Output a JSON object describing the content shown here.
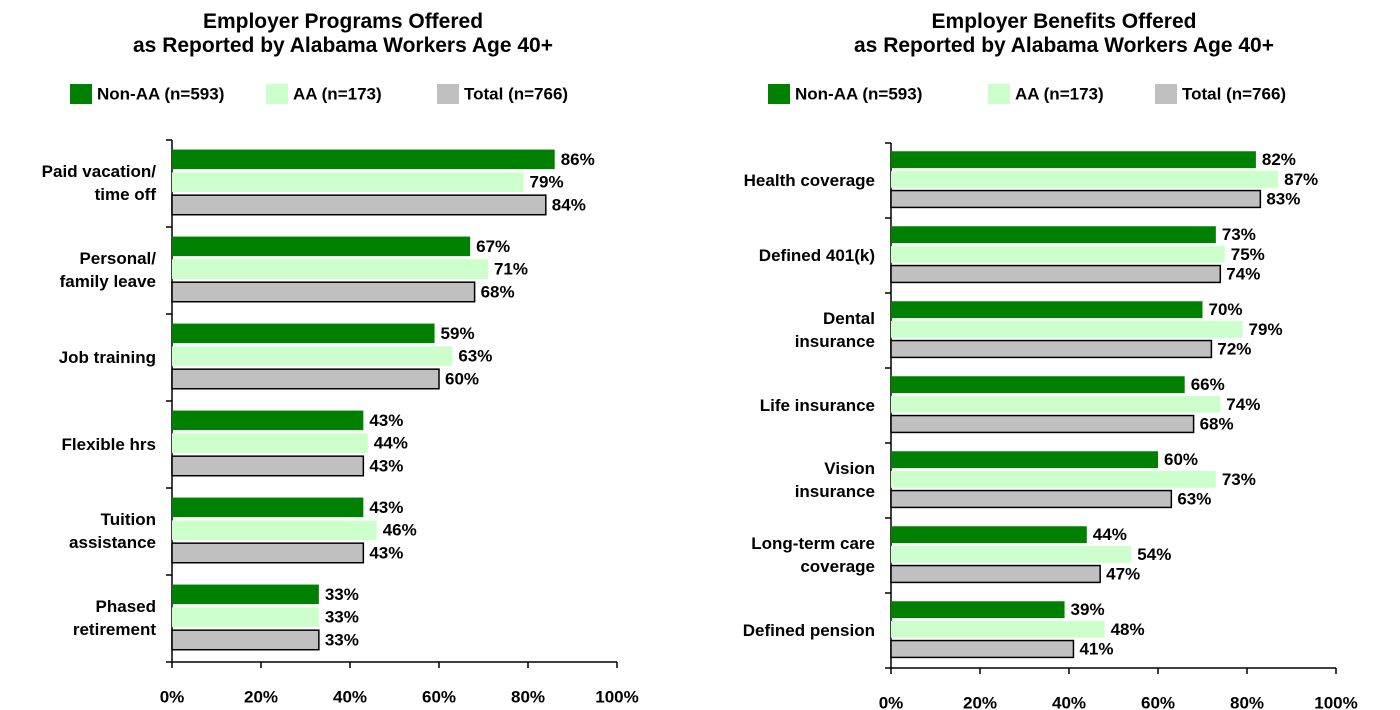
{
  "chart_data": [
    {
      "type": "hbar",
      "title": "Employer Programs Offered\nas Reported by Alabama Workers Age 40+",
      "categories": [
        "Paid vacation/\ntime off",
        "Personal/\nfamily leave",
        "Job training",
        "Flexible hrs",
        "Tuition\nassistance",
        "Phased\nretirement"
      ],
      "series": [
        {
          "name": "Non-AA (n=593)",
          "color": "#008000",
          "values": [
            86,
            67,
            59,
            43,
            43,
            33
          ],
          "value_labels": [
            "86%",
            "67%",
            "59%",
            "43%",
            "43%",
            "33%"
          ]
        },
        {
          "name": "AA (n=173)",
          "color": "#ccffcc",
          "values": [
            79,
            71,
            63,
            44,
            46,
            33
          ],
          "value_labels": [
            "79%",
            "71%",
            "63%",
            "44%",
            "46%",
            "33%"
          ]
        },
        {
          "name": "Total (n=766)",
          "color": "#c0c0c0",
          "values": [
            84,
            68,
            60,
            43,
            43,
            33
          ],
          "value_labels": [
            "84%",
            "68%",
            "60%",
            "43%",
            "43%",
            "33%"
          ]
        }
      ],
      "xlim": [
        0,
        100
      ],
      "xticks": [
        {
          "value": 0,
          "label": "0%"
        },
        {
          "value": 20,
          "label": "20%"
        },
        {
          "value": 40,
          "label": "40%"
        },
        {
          "value": 60,
          "label": "60%"
        },
        {
          "value": 80,
          "label": "80%"
        },
        {
          "value": 100,
          "label": "100%"
        }
      ],
      "legend": "top"
    },
    {
      "type": "hbar",
      "title": "Employer Benefits Offered\nas Reported by Alabama Workers Age 40+",
      "categories": [
        "Health coverage",
        "Defined 401(k)",
        "Dental\ninsurance",
        "Life insurance",
        "Vision\ninsurance",
        "Long-term care\ncoverage",
        "Defined pension"
      ],
      "series": [
        {
          "name": "Non-AA (n=593)",
          "color": "#008000",
          "values": [
            82,
            73,
            70,
            66,
            60,
            44,
            39
          ],
          "value_labels": [
            "82%",
            "73%",
            "70%",
            "66%",
            "60%",
            "44%",
            "39%"
          ]
        },
        {
          "name": "AA (n=173)",
          "color": "#ccffcc",
          "values": [
            87,
            75,
            79,
            74,
            73,
            54,
            48
          ],
          "value_labels": [
            "87%",
            "75%",
            "79%",
            "74%",
            "73%",
            "54%",
            "48%"
          ]
        },
        {
          "name": "Total (n=766)",
          "color": "#c0c0c0",
          "values": [
            83,
            74,
            72,
            68,
            63,
            47,
            41
          ],
          "value_labels": [
            "83%",
            "74%",
            "72%",
            "68%",
            "63%",
            "47%",
            "41%"
          ]
        }
      ],
      "xlim": [
        0,
        100
      ],
      "xticks": [
        {
          "value": 0,
          "label": "0%"
        },
        {
          "value": 20,
          "label": "20%"
        },
        {
          "value": 40,
          "label": "40%"
        },
        {
          "value": 60,
          "label": "60%"
        },
        {
          "value": 80,
          "label": "80%"
        },
        {
          "value": 100,
          "label": "100%"
        }
      ],
      "legend": "top"
    }
  ]
}
